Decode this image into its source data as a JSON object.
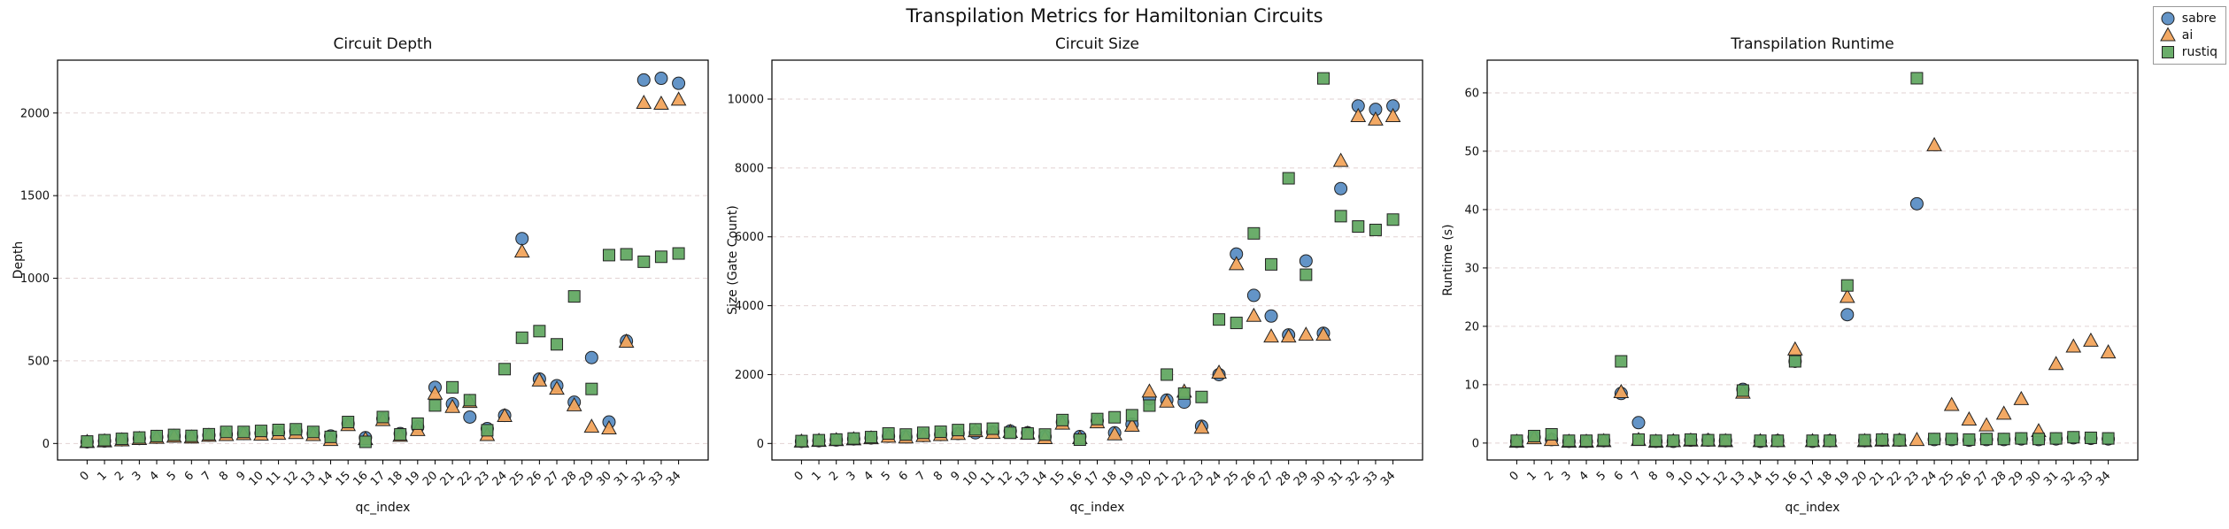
{
  "figure": {
    "title": "Transpilation Metrics for Hamiltonian Circuits",
    "background": "#ffffff"
  },
  "style": {
    "grid_color": "#e2d2d2",
    "edge_color": "#222222",
    "axis_color": "#000000"
  },
  "legend": {
    "items": [
      {
        "label": "sabre",
        "marker": "circle",
        "color": "#5b8ec4"
      },
      {
        "label": "ai",
        "marker": "triangle",
        "color": "#f2a45c"
      },
      {
        "label": "rustiq",
        "marker": "square",
        "color": "#63a963"
      }
    ]
  },
  "chart_data": [
    {
      "type": "scatter",
      "title": "Circuit Depth",
      "xlabel": "qc_index",
      "ylabel": "Depth",
      "x": [
        0,
        1,
        2,
        3,
        4,
        5,
        6,
        7,
        8,
        9,
        10,
        11,
        12,
        13,
        14,
        15,
        16,
        17,
        18,
        19,
        20,
        21,
        22,
        23,
        24,
        25,
        26,
        27,
        28,
        29,
        30,
        31,
        32,
        33,
        34
      ],
      "ylim": [
        -100,
        2320
      ],
      "yticks": [
        0,
        500,
        1000,
        1500,
        2000
      ],
      "grid": true,
      "series": [
        {
          "name": "sabre",
          "marker": "circle",
          "color": "#5b8ec4",
          "values": [
            10,
            15,
            22,
            30,
            38,
            45,
            40,
            50,
            55,
            60,
            62,
            65,
            75,
            60,
            45,
            120,
            35,
            150,
            60,
            100,
            340,
            240,
            160,
            90,
            170,
            1240,
            390,
            350,
            250,
            520,
            130,
            620,
            2200,
            2210,
            2180
          ]
        },
        {
          "name": "ai",
          "marker": "triangle",
          "color": "#f2a45c",
          "values": [
            8,
            12,
            18,
            26,
            33,
            40,
            35,
            45,
            50,
            55,
            52,
            57,
            62,
            50,
            20,
            110,
            25,
            140,
            45,
            80,
            300,
            220,
            250,
            50,
            165,
            1160,
            380,
            330,
            230,
            100,
            90,
            615,
            2060,
            2055,
            2080
          ]
        },
        {
          "name": "rustiq",
          "marker": "square",
          "color": "#63a963",
          "values": [
            12,
            20,
            28,
            36,
            45,
            52,
            46,
            56,
            70,
            70,
            76,
            82,
            86,
            70,
            40,
            130,
            10,
            160,
            55,
            120,
            230,
            340,
            262,
            80,
            450,
            640,
            680,
            600,
            890,
            330,
            1140,
            1145,
            1100,
            1130,
            1150
          ]
        }
      ]
    },
    {
      "type": "scatter",
      "title": "Circuit Size",
      "xlabel": "qc_index",
      "ylabel": "Size (Gate Count)",
      "x": [
        0,
        1,
        2,
        3,
        4,
        5,
        6,
        7,
        8,
        9,
        10,
        11,
        12,
        13,
        14,
        15,
        16,
        17,
        18,
        19,
        20,
        21,
        22,
        23,
        24,
        25,
        26,
        27,
        28,
        29,
        30,
        31,
        32,
        33,
        34
      ],
      "ylim": [
        -480,
        11130
      ],
      "yticks": [
        0,
        2000,
        4000,
        6000,
        8000,
        10000
      ],
      "grid": true,
      "series": [
        {
          "name": "sabre",
          "marker": "circle",
          "color": "#5b8ec4",
          "values": [
            60,
            80,
            100,
            130,
            160,
            210,
            190,
            230,
            260,
            290,
            310,
            330,
            360,
            310,
            200,
            620,
            200,
            660,
            310,
            560,
            1300,
            1260,
            1200,
            500,
            2000,
            5500,
            4300,
            3700,
            3150,
            5300,
            3200,
            7400,
            9800,
            9700,
            9800
          ]
        },
        {
          "name": "ai",
          "marker": "triangle",
          "color": "#f2a45c",
          "values": [
            50,
            70,
            90,
            115,
            145,
            190,
            170,
            210,
            240,
            270,
            350,
            300,
            330,
            280,
            150,
            570,
            150,
            610,
            260,
            510,
            1500,
            1210,
            1500,
            450,
            2050,
            5200,
            3700,
            3100,
            3100,
            3150,
            3150,
            8200,
            9500,
            9400,
            9500
          ]
        },
        {
          "name": "rustiq",
          "marker": "square",
          "color": "#63a963",
          "values": [
            70,
            95,
            115,
            145,
            185,
            290,
            260,
            310,
            340,
            390,
            410,
            430,
            310,
            290,
            260,
            680,
            110,
            710,
            760,
            820,
            1100,
            2000,
            1450,
            1350,
            3600,
            3500,
            6100,
            5200,
            7700,
            4900,
            10600,
            6600,
            6300,
            6200,
            6500
          ]
        }
      ]
    },
    {
      "type": "scatter",
      "title": "Transpilation Runtime",
      "xlabel": "qc_index",
      "ylabel": "Runtime (s)",
      "x": [
        0,
        1,
        2,
        3,
        4,
        5,
        6,
        7,
        8,
        9,
        10,
        11,
        12,
        13,
        14,
        15,
        16,
        17,
        18,
        19,
        20,
        21,
        22,
        23,
        24,
        25,
        26,
        27,
        28,
        29,
        30,
        31,
        32,
        33,
        34
      ],
      "ylim": [
        -2.9,
        65.6
      ],
      "yticks": [
        0,
        10,
        20,
        30,
        40,
        50,
        60
      ],
      "grid": true,
      "series": [
        {
          "name": "sabre",
          "marker": "circle",
          "color": "#5b8ec4",
          "values": [
            0.3,
            1.0,
            0.6,
            0.3,
            0.3,
            0.4,
            8.5,
            3.5,
            0.3,
            0.3,
            0.5,
            0.5,
            0.4,
            9.2,
            0.3,
            0.4,
            14.0,
            0.3,
            0.4,
            22.0,
            0.4,
            0.5,
            0.5,
            41.0,
            0.6,
            0.6,
            0.5,
            0.6,
            0.6,
            0.7,
            0.6,
            0.7,
            0.9,
            0.8,
            0.7
          ]
        },
        {
          "name": "ai",
          "marker": "triangle",
          "color": "#f2a45c",
          "values": [
            0.2,
            0.8,
            0.5,
            0.2,
            0.2,
            0.3,
            8.7,
            0.5,
            0.2,
            0.3,
            0.4,
            0.4,
            0.3,
            8.6,
            0.3,
            0.3,
            16.0,
            0.3,
            0.3,
            25.0,
            0.3,
            0.4,
            0.4,
            0.5,
            51.0,
            6.5,
            4.0,
            3.0,
            5.0,
            7.5,
            2.0,
            13.5,
            16.5,
            17.5,
            15.5
          ]
        },
        {
          "name": "rustiq",
          "marker": "square",
          "color": "#63a963",
          "values": [
            0.4,
            1.2,
            1.5,
            0.4,
            0.4,
            0.5,
            14.0,
            0.6,
            0.4,
            0.4,
            0.6,
            0.5,
            0.5,
            9.0,
            0.4,
            0.4,
            14.0,
            0.4,
            0.4,
            27.0,
            0.5,
            0.6,
            0.5,
            62.5,
            0.7,
            0.7,
            0.6,
            0.7,
            0.7,
            0.8,
            0.7,
            0.8,
            1.0,
            0.9,
            0.8
          ]
        }
      ]
    }
  ]
}
